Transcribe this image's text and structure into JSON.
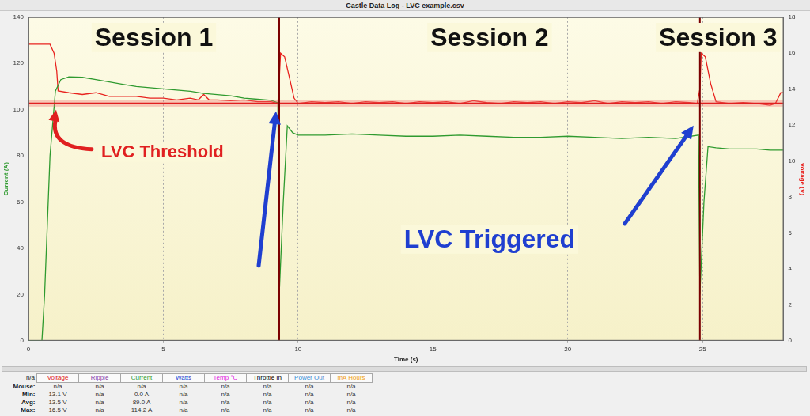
{
  "chart_data": {
    "type": "line",
    "title": "Castle Data Log - LVC example.csv",
    "x_label": "Time (s)",
    "y_label": "Current (A)",
    "y2_label": "Voltage (V)",
    "xlim": [
      0,
      28
    ],
    "xticks": [
      0,
      5,
      10,
      15,
      20,
      25
    ],
    "ylim": [
      0,
      140
    ],
    "yticks": [
      0,
      20,
      40,
      60,
      80,
      100,
      120,
      140
    ],
    "y2lim": [
      0,
      18
    ],
    "y2ticks": [
      0,
      2,
      4,
      6,
      8,
      10,
      12,
      14,
      16,
      18
    ],
    "grid": "x",
    "series": [
      {
        "name": "Current",
        "color": "#2f9a2f",
        "axis": "y",
        "x": [
          0,
          0.5,
          0.6,
          0.8,
          1.0,
          1.2,
          1.5,
          2,
          2.5,
          3,
          3.5,
          4,
          4.5,
          5,
          5.5,
          6,
          6.5,
          7,
          7.5,
          8,
          8.5,
          9,
          9.25,
          9.3,
          9.45,
          9.6,
          9.8,
          10,
          11,
          12,
          13,
          14,
          15,
          16,
          17,
          18,
          19,
          20,
          21,
          22,
          23,
          24,
          24.85,
          24.9,
          25.05,
          25.2,
          25.5,
          26,
          26.5,
          27,
          27.5,
          28
        ],
        "values": [
          0,
          0,
          20,
          80,
          108,
          113,
          114.2,
          114,
          113,
          112,
          111,
          110,
          109.5,
          109,
          108.5,
          108,
          107,
          106.5,
          106,
          105,
          104.5,
          104,
          103,
          20,
          60,
          93,
          90,
          89,
          89,
          89.5,
          89,
          88.5,
          88.5,
          89,
          88.5,
          88,
          88,
          88.5,
          88,
          87.5,
          88,
          87.5,
          89,
          20,
          60,
          84,
          83.5,
          83,
          83,
          83,
          82.5,
          82.5
        ]
      },
      {
        "name": "Voltage",
        "color": "#e8231f",
        "axis": "y2",
        "x": [
          0,
          0.8,
          0.95,
          1.05,
          1.1,
          1.5,
          2,
          2.5,
          3,
          3.5,
          4,
          4.5,
          5,
          5.5,
          6,
          6.3,
          6.5,
          6.7,
          7,
          7.5,
          8,
          8.5,
          9,
          9.25,
          9.3,
          9.35,
          9.5,
          9.7,
          9.85,
          10,
          10.5,
          11,
          11.5,
          12,
          12.5,
          13,
          13.5,
          14,
          14.5,
          15,
          15.5,
          16,
          16.5,
          17,
          17.5,
          18,
          18.5,
          19,
          19.5,
          20,
          20.5,
          21,
          21.5,
          22,
          22.5,
          23,
          23.5,
          24,
          24.5,
          24.8,
          24.9,
          24.95,
          25.1,
          25.3,
          25.5,
          26,
          26.5,
          27,
          27.5,
          27.7,
          27.9,
          28
        ],
        "values": [
          16.5,
          16.5,
          16.0,
          15.0,
          13.9,
          13.8,
          13.7,
          13.8,
          13.6,
          13.6,
          13.6,
          13.5,
          13.5,
          13.4,
          13.5,
          13.4,
          13.7,
          13.4,
          13.4,
          13.35,
          13.4,
          13.3,
          13.3,
          13.2,
          14.5,
          16.0,
          15.8,
          14.5,
          13.5,
          13.2,
          13.3,
          13.25,
          13.3,
          13.2,
          13.3,
          13.25,
          13.3,
          13.2,
          13.3,
          13.25,
          13.3,
          13.2,
          13.35,
          13.25,
          13.2,
          13.3,
          13.25,
          13.3,
          13.2,
          13.3,
          13.25,
          13.35,
          13.2,
          13.3,
          13.25,
          13.3,
          13.2,
          13.3,
          13.25,
          13.2,
          14.0,
          16.0,
          15.8,
          14.3,
          13.3,
          13.2,
          13.25,
          13.2,
          13.1,
          13.2,
          13.8,
          13.8
        ]
      }
    ],
    "threshold": {
      "value": 13.2,
      "label": "LVC Threshold"
    },
    "session_breaks": [
      9.3,
      24.9
    ],
    "session_labels": [
      "Session 1",
      "Session 2",
      "Session 3"
    ],
    "trigger_label": "LVC Triggered"
  },
  "stats_table": {
    "corner": "n/a",
    "columns": [
      "Voltage",
      "Ripple",
      "Current",
      "Watts",
      "Temp °C",
      "Throttle In",
      "Power Out",
      "mA Hours"
    ],
    "colors": [
      "#e02020",
      "#8b3fa8",
      "#2f9a2f",
      "#2040d0",
      "#e020e0",
      "#000000",
      "#3a8fd8",
      "#f0a020"
    ],
    "rows": [
      {
        "label": "Mouse:",
        "cells": [
          "n/a",
          "n/a",
          "n/a",
          "n/a",
          "n/a",
          "n/a",
          "n/a",
          "n/a"
        ]
      },
      {
        "label": "Min:",
        "cells": [
          "13.1 V",
          "n/a",
          "0.0 A",
          "n/a",
          "n/a",
          "n/a",
          "n/a",
          "n/a"
        ]
      },
      {
        "label": "Avg:",
        "cells": [
          "13.5 V",
          "n/a",
          "89.0 A",
          "n/a",
          "n/a",
          "n/a",
          "n/a",
          "n/a"
        ]
      },
      {
        "label": "Max:",
        "cells": [
          "16.5 V",
          "n/a",
          "114.2 A",
          "n/a",
          "n/a",
          "n/a",
          "n/a",
          "n/a"
        ]
      }
    ]
  }
}
